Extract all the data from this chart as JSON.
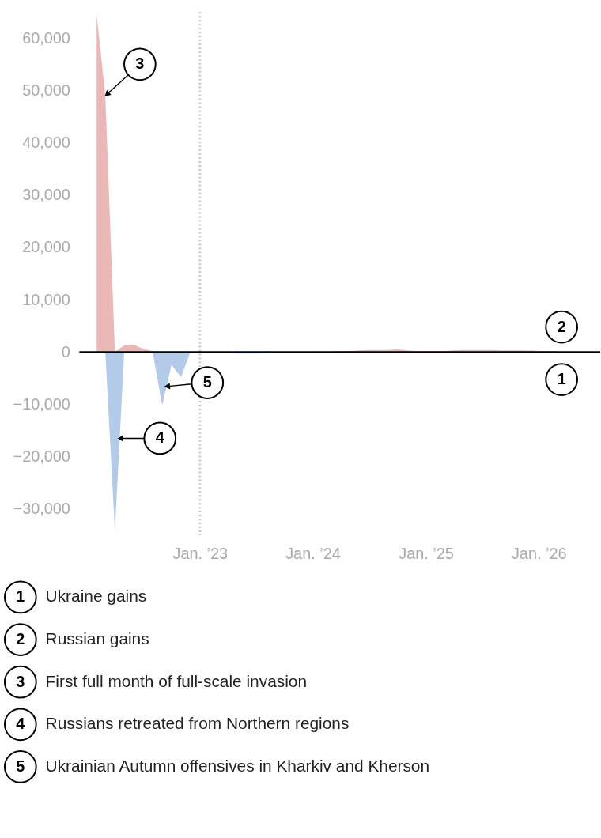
{
  "chart_data": {
    "type": "area",
    "x": [
      "2022-02",
      "2022-03",
      "2022-04",
      "2022-05",
      "2022-06",
      "2022-07",
      "2022-08",
      "2022-09",
      "2022-10",
      "2022-11",
      "2022-12",
      "2023-01",
      "2023-02",
      "2023-03",
      "2023-04",
      "2023-05",
      "2023-06",
      "2023-07",
      "2023-08",
      "2023-09",
      "2023-10",
      "2023-11",
      "2023-12",
      "2024-01",
      "2024-02",
      "2024-03",
      "2024-04",
      "2024-05",
      "2024-06",
      "2024-07",
      "2024-08",
      "2024-09",
      "2024-10",
      "2024-11",
      "2024-12",
      "2025-01",
      "2025-02",
      "2025-03",
      "2025-04",
      "2025-05",
      "2025-06",
      "2025-07",
      "2025-08",
      "2025-09",
      "2025-10",
      "2025-11",
      "2025-12",
      "2026-01",
      "2026-02",
      "2026-03",
      "2026-04",
      "2026-05"
    ],
    "series": [
      {
        "color": "#ebb8b8",
        "values": [
          64600,
          49000,
          0,
          1300,
          1400,
          600,
          200,
          0,
          0,
          0,
          0,
          100,
          100,
          100,
          100,
          0,
          0,
          0,
          0,
          0,
          0,
          0,
          0,
          100,
          100,
          100,
          200,
          200,
          300,
          400,
          400,
          400,
          500,
          300,
          200,
          200,
          200,
          200,
          300,
          400,
          400,
          400,
          400,
          300,
          300,
          300,
          300,
          200,
          200,
          100,
          100,
          100
        ]
      },
      {
        "color": "#b3cbe9",
        "values": [
          0,
          0,
          -34300,
          0,
          0,
          0,
          0,
          -10200,
          -2500,
          -4800,
          0,
          0,
          0,
          0,
          0,
          -300,
          -300,
          -300,
          -200,
          -100,
          0,
          0,
          0,
          0,
          0,
          0,
          0,
          0,
          0,
          0,
          0,
          0,
          0,
          0,
          0,
          0,
          0,
          0,
          0,
          0,
          0,
          0,
          0,
          0,
          0,
          0,
          0,
          0,
          0,
          0,
          0,
          0
        ]
      }
    ],
    "xlim": [
      "2021-12-07",
      "2026-07-19"
    ],
    "xticks": [
      {
        "value": "2023-01-01",
        "label": "Jan. ’23"
      },
      {
        "value": "2024-01-01",
        "label": "Jan. ’24"
      },
      {
        "value": "2025-01-01",
        "label": "Jan. ’25"
      },
      {
        "value": "2026-01-01",
        "label": "Jan. ’26"
      }
    ],
    "ylim": [
      -35000,
      65000
    ],
    "yticks": [
      {
        "value": -30000,
        "label": "−30,000"
      },
      {
        "value": -20000,
        "label": "−20,000"
      },
      {
        "value": -10000,
        "label": "−10,000"
      },
      {
        "value": 0,
        "label": "0"
      },
      {
        "value": 10000,
        "label": "10,000"
      },
      {
        "value": 20000,
        "label": "20,000"
      },
      {
        "value": 30000,
        "label": "30,000"
      },
      {
        "value": 40000,
        "label": "40,000"
      },
      {
        "value": 50000,
        "label": "50,000"
      },
      {
        "value": 60000,
        "label": "60,000"
      }
    ],
    "ref_lines": [
      {
        "axis": "x",
        "value": "2023-01-01",
        "color": "#cccccc",
        "line_style": "dotted"
      },
      {
        "axis": "y",
        "value": 0,
        "color": "#000000",
        "line_style": "solid"
      }
    ],
    "annotations": [
      {
        "text": "1",
        "x": "2026-03-16",
        "y": -5250
      },
      {
        "text": "2",
        "x": "2026-03-16",
        "y": 4800
      },
      {
        "text": "3",
        "x": "2022-03-01",
        "y": 49000
      },
      {
        "text": "4",
        "x": "2022-04-12",
        "y": -16500
      },
      {
        "text": "5",
        "x": "2022-09-10",
        "y": -6600
      },
      "Ukraine gains",
      "Russian gains",
      "First full month of full-scale invasion",
      "Russians retreated from Northern regions",
      "Ukrainian Autumn offensives in Kharkiv and Kherson"
    ],
    "grid": false
  }
}
